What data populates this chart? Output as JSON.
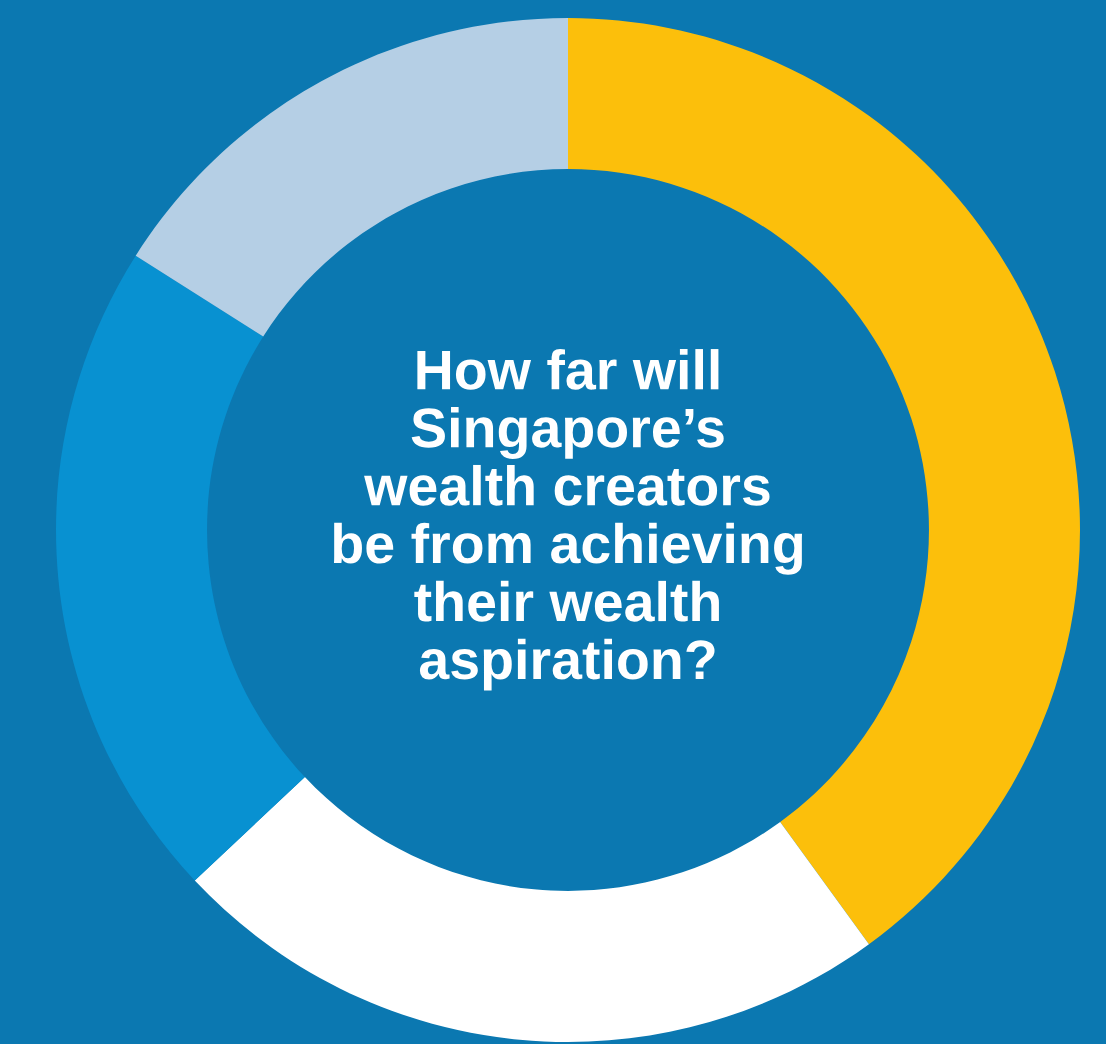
{
  "chart_data": {
    "type": "donut",
    "title": "How far will\nSingapore’s\nwealth creators\nbe from achieving\ntheir wealth\naspiration?",
    "categories": [
      null,
      null,
      null,
      null
    ],
    "values": [
      40,
      23,
      21,
      16
    ],
    "colors": [
      "#fcbf0b",
      "#ffffff",
      "#0891d1",
      "#b5cfe5"
    ],
    "legend": false
  }
}
